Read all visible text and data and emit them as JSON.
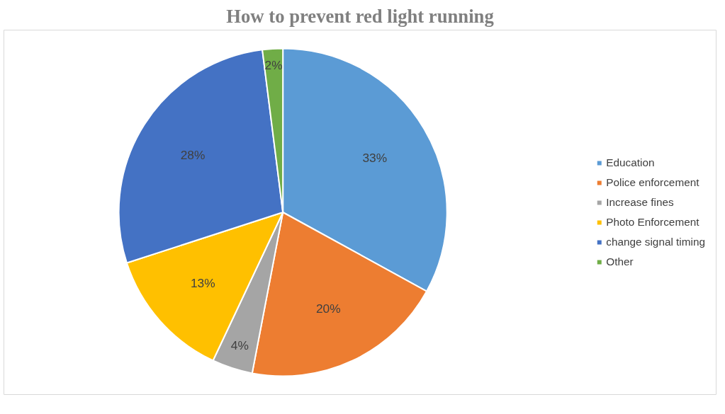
{
  "chart_data": {
    "type": "pie",
    "title": "How to prevent red light running",
    "categories": [
      "Education",
      "Police enforcement",
      "Increase fines",
      "Photo Enforcement",
      "change signal timing",
      "Other"
    ],
    "values": [
      33,
      20,
      4,
      13,
      28,
      2
    ],
    "colors": [
      "#5b9bd5",
      "#ed7d31",
      "#a5a5a5",
      "#ffc000",
      "#4472c4",
      "#70ad47"
    ],
    "value_labels": [
      "33%",
      "20%",
      "4%",
      "13%",
      "28%",
      "2%"
    ],
    "legend": "right"
  }
}
